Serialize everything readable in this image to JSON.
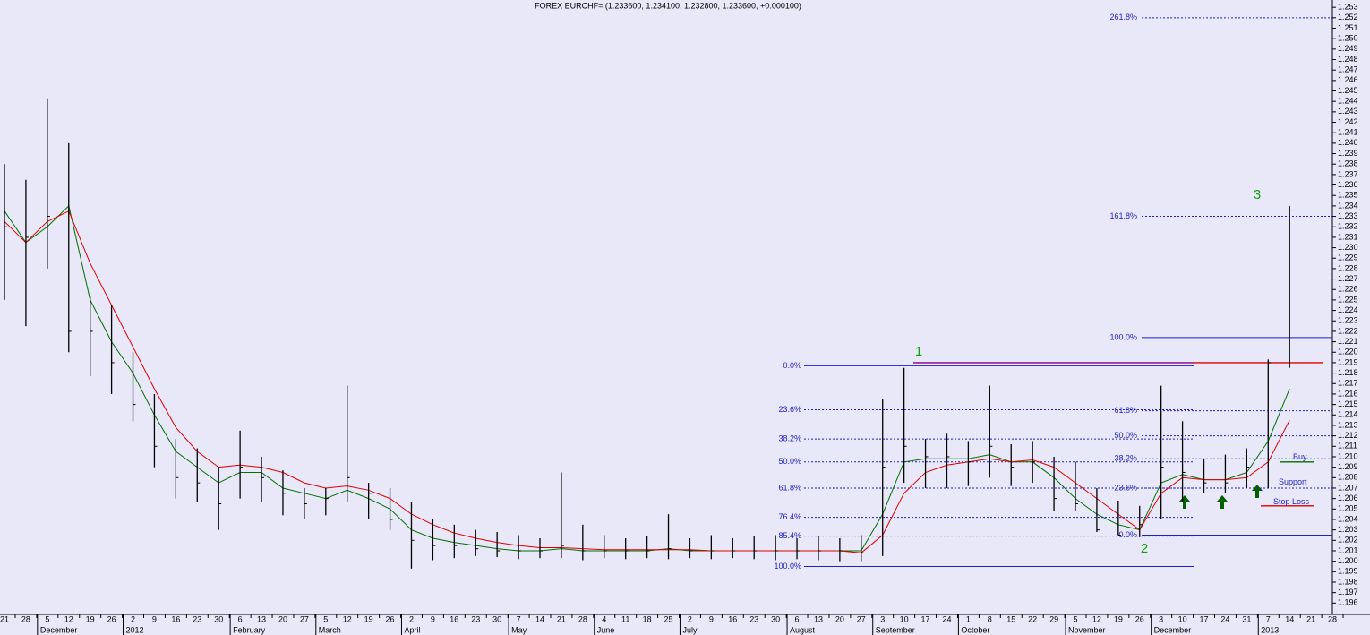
{
  "chart_data": {
    "type": "ohlc",
    "title": "FOREX EURCHF= (1.233600, 1.234100, 1.232800, 1.233600, +0.000100)",
    "categories": [
      "21",
      "28",
      "5",
      "12",
      "19",
      "26",
      "2",
      "9",
      "16",
      "23",
      "30",
      "6",
      "13",
      "20",
      "27",
      "5",
      "12",
      "19",
      "26",
      "2",
      "9",
      "16",
      "23",
      "30",
      "7",
      "14",
      "21",
      "28",
      "4",
      "11",
      "18",
      "25",
      "2",
      "9",
      "16",
      "23",
      "30",
      "6",
      "13",
      "20",
      "27",
      "3",
      "10",
      "17",
      "24",
      "1",
      "8",
      "15",
      "22",
      "29",
      "5",
      "12",
      "19",
      "26",
      "3",
      "10",
      "17",
      "24",
      "31",
      "7",
      "14",
      "21",
      "28"
    ],
    "months": [
      null,
      null,
      "December",
      null,
      null,
      null,
      "2012",
      null,
      null,
      null,
      null,
      "February",
      null,
      null,
      null,
      "March",
      null,
      null,
      null,
      "April",
      null,
      null,
      null,
      null,
      "May",
      null,
      null,
      null,
      "June",
      null,
      null,
      null,
      "July",
      null,
      null,
      null,
      null,
      "August",
      null,
      null,
      null,
      "September",
      null,
      null,
      null,
      "October",
      null,
      null,
      null,
      null,
      "November",
      null,
      null,
      null,
      "December",
      null,
      null,
      null,
      null,
      "2013",
      null,
      null,
      null
    ],
    "high": [
      1.238,
      1.2365,
      1.2443,
      1.24,
      1.2254,
      1.2245,
      1.22,
      1.216,
      1.2117,
      1.2108,
      1.209,
      1.2125,
      1.21,
      1.2087,
      1.207,
      1.207,
      1.2168,
      1.2075,
      1.207,
      1.2057,
      1.204,
      1.2035,
      1.203,
      1.2028,
      1.2025,
      1.2022,
      1.2085,
      1.2035,
      1.2025,
      1.2022,
      1.2024,
      1.2045,
      1.2022,
      1.2025,
      1.2022,
      1.2024,
      1.2025,
      1.2022,
      1.2024,
      1.2022,
      1.2025,
      1.2155,
      1.2185,
      1.2117,
      1.2122,
      1.2115,
      1.2168,
      1.2112,
      1.2115,
      1.21,
      1.2095,
      1.207,
      1.2058,
      1.2053,
      1.2168,
      1.2134,
      1.2098,
      1.2102,
      1.2108,
      1.2193,
      1.234,
      null,
      null
    ],
    "low": [
      1.225,
      1.2225,
      1.228,
      1.22,
      1.2177,
      1.216,
      1.2134,
      1.209,
      1.206,
      1.2057,
      1.203,
      1.206,
      1.2057,
      1.2044,
      1.204,
      1.2044,
      1.2057,
      1.204,
      1.203,
      1.1993,
      1.2001,
      1.2003,
      1.2005,
      1.2004,
      1.2002,
      1.2003,
      1.2003,
      1.2001,
      1.2003,
      1.2002,
      1.2003,
      1.2002,
      1.2003,
      1.2002,
      1.2003,
      1.2002,
      1.2001,
      1.2002,
      1.2001,
      1.2,
      1.2,
      1.2005,
      1.2075,
      1.207,
      1.207,
      1.2072,
      1.208,
      1.2072,
      1.2075,
      1.2048,
      1.2048,
      1.2028,
      1.2025,
      1.2023,
      1.204,
      1.2057,
      1.2065,
      1.2065,
      1.207,
      1.207,
      1.2185,
      null,
      null
    ],
    "close": [
      1.232,
      1.231,
      1.233,
      1.222,
      1.222,
      1.219,
      1.215,
      1.211,
      1.208,
      1.2075,
      1.2055,
      1.209,
      1.208,
      1.2065,
      1.2055,
      1.206,
      1.208,
      1.2065,
      1.204,
      1.202,
      1.2015,
      1.2015,
      1.2012,
      1.201,
      1.201,
      1.201,
      1.2015,
      1.201,
      1.201,
      1.201,
      1.201,
      1.2012,
      1.201,
      1.201,
      1.201,
      1.201,
      1.201,
      1.201,
      1.201,
      1.201,
      1.2008,
      1.209,
      1.211,
      1.21,
      1.21,
      1.2095,
      1.211,
      1.209,
      1.2095,
      1.206,
      1.2055,
      1.203,
      1.2025,
      1.2035,
      1.209,
      1.2085,
      1.2075,
      1.2075,
      1.209,
      1.219,
      1.2336,
      null,
      null
    ],
    "bar_color": "#000000",
    "moving_averages": [
      {
        "color": "#007000",
        "values": [
          1.2335,
          1.2305,
          1.232,
          1.234,
          1.225,
          1.221,
          1.218,
          1.214,
          1.2105,
          1.209,
          1.2075,
          1.2085,
          1.2085,
          1.207,
          1.2065,
          1.206,
          1.2068,
          1.206,
          1.205,
          1.203,
          1.2022,
          1.2018,
          1.2015,
          1.2012,
          1.201,
          1.201,
          1.2012,
          1.201,
          1.201,
          1.201,
          1.201,
          1.2012,
          1.201,
          1.201,
          1.201,
          1.201,
          1.201,
          1.201,
          1.201,
          1.201,
          1.201,
          1.2045,
          1.2095,
          1.2098,
          1.2098,
          1.2098,
          1.2102,
          1.2095,
          1.2095,
          1.208,
          1.206,
          1.2045,
          1.2035,
          1.203,
          1.2075,
          1.2083,
          1.2078,
          1.2078,
          1.2085,
          1.2115,
          1.2165,
          null,
          null
        ]
      },
      {
        "color": "#e00000",
        "values": [
          1.2325,
          1.2305,
          1.2325,
          1.2335,
          1.2285,
          1.2245,
          1.2205,
          1.2165,
          1.2128,
          1.2105,
          1.209,
          1.2092,
          1.209,
          1.2085,
          1.2075,
          1.207,
          1.2072,
          1.2068,
          1.206,
          1.2045,
          1.2035,
          1.2027,
          1.2022,
          1.2018,
          1.2015,
          1.2013,
          1.2013,
          1.2012,
          1.2011,
          1.2011,
          1.2011,
          1.2011,
          1.2011,
          1.201,
          1.201,
          1.201,
          1.201,
          1.201,
          1.201,
          1.201,
          1.2008,
          1.2025,
          1.2065,
          1.2085,
          1.2092,
          1.2095,
          1.2098,
          1.2095,
          1.2097,
          1.209,
          1.2075,
          1.206,
          1.2045,
          1.203,
          1.2065,
          1.208,
          1.2078,
          1.2078,
          1.208,
          1.2095,
          1.2135,
          null,
          null
        ]
      }
    ],
    "fib_left": [
      {
        "label": "0.0%",
        "value": 1.2187,
        "style": "solid"
      },
      {
        "label": "23.6%",
        "value": 1.2145,
        "style": "dashed"
      },
      {
        "label": "38.2%",
        "value": 1.2117,
        "style": "dashed"
      },
      {
        "label": "50.0%",
        "value": 1.2095,
        "style": "dashed"
      },
      {
        "label": "61.8%",
        "value": 1.207,
        "style": "dashed"
      },
      {
        "label": "76.4%",
        "value": 1.2042,
        "style": "dashed"
      },
      {
        "label": "85.4%",
        "value": 1.2024,
        "style": "dashed"
      },
      {
        "label": "100.0%",
        "value": 1.1995,
        "style": "solid"
      }
    ],
    "fib_right": [
      {
        "label": "261.8%",
        "value": 1.252,
        "style": "dashed"
      },
      {
        "label": "161.8%",
        "value": 1.233,
        "style": "dashed"
      },
      {
        "label": "100.0%",
        "value": 1.2214,
        "style": "solid"
      },
      {
        "label": "61.8%",
        "value": 1.2144,
        "style": "dashed"
      },
      {
        "label": "50.0%",
        "value": 1.212,
        "style": "dashed"
      },
      {
        "label": "38.2%",
        "value": 1.2098,
        "style": "dashed"
      },
      {
        "label": "23.6%",
        "value": 1.207,
        "style": "dashed"
      },
      {
        "label": "0.0%",
        "value": 1.2025,
        "style": "solid"
      }
    ],
    "fib_color": "#2020c0",
    "levels": [
      {
        "value": 1.219,
        "color": "#800080"
      },
      {
        "value": 1.219,
        "color": "#e00000"
      },
      {
        "label": "Buy",
        "value": 1.2095,
        "color": "#007000"
      },
      {
        "label": "Support",
        "value": 1.2072,
        "color": "#2020c0"
      },
      {
        "label": "Stop Loss",
        "value": 1.2053,
        "color": "#e00000"
      }
    ],
    "waves": [
      "1",
      "2",
      "3"
    ],
    "wave_color": "#10a010",
    "ylim": [
      1.195,
      1.2537
    ],
    "yticks": [
      1.196,
      1.197,
      1.198,
      1.199,
      {
        "value": 1.2,
        "label": "1.200"
      },
      1.201,
      1.202,
      1.203,
      1.204,
      1.205,
      1.206,
      1.207,
      1.208,
      1.209,
      {
        "value": 1.21,
        "label": "1.210"
      },
      1.211,
      1.212,
      1.213,
      1.214,
      1.215,
      1.216,
      1.217,
      1.218,
      1.219,
      {
        "value": 1.22,
        "label": "1.220"
      },
      1.221,
      1.222,
      1.223,
      1.224,
      1.225,
      1.226,
      1.227,
      1.228,
      1.229,
      {
        "value": 1.23,
        "label": "1.230"
      },
      1.231,
      1.232,
      1.233,
      1.234,
      1.235,
      1.236,
      1.237,
      1.238,
      1.239,
      {
        "value": 1.24,
        "label": "1.240"
      },
      1.241,
      1.242,
      1.243,
      1.244,
      1.245,
      1.246,
      1.247,
      1.248,
      1.249,
      {
        "value": 1.25,
        "label": "1.250"
      },
      1.251,
      1.252,
      1.253
    ]
  }
}
